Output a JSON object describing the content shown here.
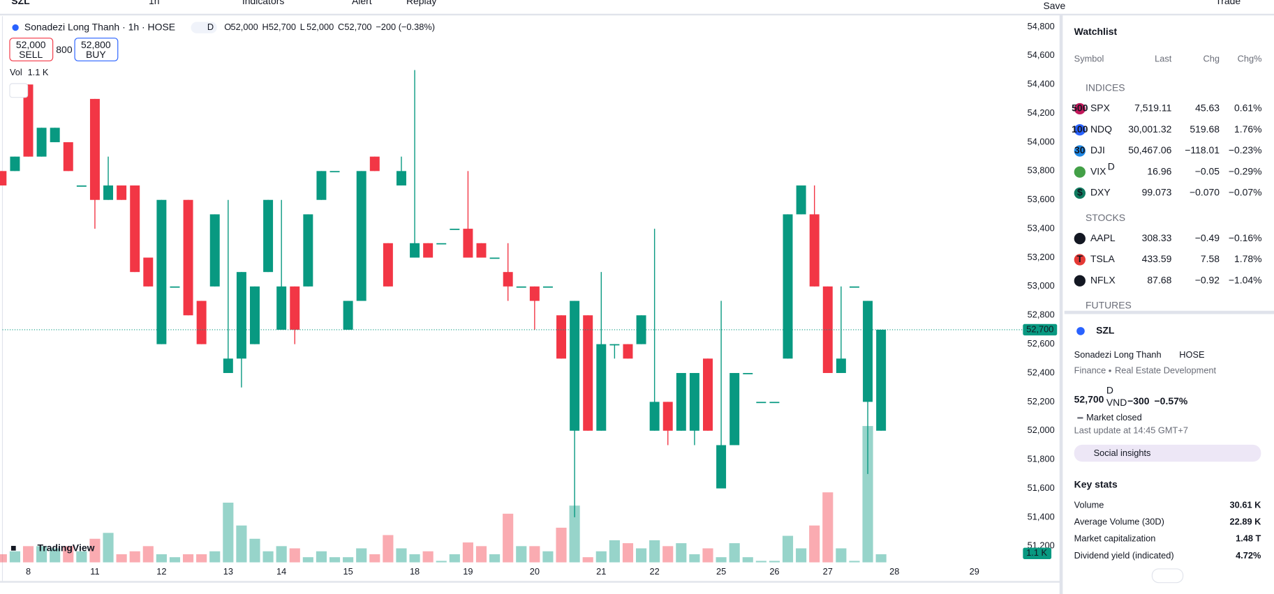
{
  "toolbar": {
    "symbol": "SZL",
    "interval": "1h",
    "indicators": "Indicators",
    "alert": "Alert",
    "replay": "Replay",
    "save": "Save",
    "trade": "Trade"
  },
  "legend": {
    "title": "Sonadezi Long Thanh · 1h · HOSE",
    "badge": "D",
    "ohlc": [
      {
        "label": "O",
        "value": "52,000"
      },
      {
        "label": "H",
        "value": "52,700"
      },
      {
        "label": "L",
        "value": "52,000"
      },
      {
        "label": "C",
        "value": "52,700"
      }
    ],
    "change": "−200 (−0.38%)",
    "sell": "52,000",
    "sell_label": "SELL",
    "spread": "800",
    "buy": "52,800",
    "buy_label": "BUY",
    "vol_label": "Vol",
    "vol": "1.1 K",
    "last_price": "52,700",
    "last_volume": "1.1 K",
    "logo": "TradingView"
  },
  "chart_data": {
    "type": "candlestick",
    "up_color": "#089981",
    "down_color": "#f23645",
    "open": [
      53800,
      53800,
      54400,
      53900,
      54000,
      54000,
      53700,
      54300,
      53600,
      53700,
      53700,
      53200,
      52600,
      53000,
      53600,
      52900,
      53000,
      52400,
      52500,
      52600,
      53100,
      52700,
      53000,
      53000,
      53600,
      53800,
      52700,
      52900,
      53900,
      53300,
      53700,
      53200,
      53300,
      53300,
      53400,
      53400,
      53300,
      53200,
      53100,
      53000,
      53000,
      53000,
      52800,
      52000,
      52800,
      52000,
      52600,
      52600,
      52600,
      52000,
      52200,
      52000,
      52000,
      52500,
      51600,
      51900,
      52400,
      52200,
      52200,
      52500,
      53500,
      53500,
      53000,
      52400,
      53000,
      52200,
      52000
    ],
    "high": [
      53800,
      53900,
      54400,
      54100,
      54100,
      54000,
      53700,
      54300,
      53900,
      53700,
      53700,
      53200,
      53600,
      53000,
      53600,
      52900,
      53500,
      53600,
      53100,
      53000,
      53600,
      53600,
      53000,
      53500,
      53800,
      53800,
      52900,
      53800,
      53900,
      53300,
      53900,
      54500,
      53300,
      53300,
      53400,
      53800,
      53300,
      53200,
      53300,
      53000,
      53000,
      53000,
      52800,
      52900,
      52800,
      53100,
      52600,
      52600,
      52800,
      53400,
      52200,
      52400,
      52400,
      52500,
      52900,
      52400,
      52400,
      52200,
      52200,
      53500,
      53700,
      53700,
      53000,
      53000,
      53000,
      52900,
      52700
    ],
    "low": [
      53700,
      53800,
      53900,
      53900,
      54000,
      53800,
      53700,
      53400,
      53600,
      53600,
      53100,
      53000,
      52600,
      53000,
      52800,
      52600,
      53000,
      52400,
      52300,
      52600,
      53100,
      52700,
      52600,
      53000,
      53600,
      53800,
      52700,
      52900,
      53800,
      53000,
      53700,
      53200,
      53200,
      53300,
      53400,
      53200,
      53200,
      53200,
      52900,
      53000,
      52700,
      53000,
      52500,
      51400,
      52000,
      52000,
      52500,
      52500,
      52600,
      52000,
      51900,
      52000,
      51900,
      52000,
      51600,
      51900,
      52400,
      52200,
      52200,
      52500,
      53500,
      53000,
      52400,
      52400,
      53000,
      51700,
      52000
    ],
    "close": [
      53700,
      53900,
      53900,
      54100,
      54100,
      53800,
      53700,
      53600,
      53700,
      53600,
      53100,
      53000,
      53600,
      53000,
      52800,
      52600,
      53500,
      52500,
      53100,
      53000,
      53600,
      53000,
      52700,
      53500,
      53800,
      53800,
      52900,
      53800,
      53800,
      53000,
      53800,
      53300,
      53200,
      53300,
      53400,
      53200,
      53200,
      53200,
      53000,
      53000,
      52900,
      53000,
      52500,
      52900,
      52000,
      52600,
      52600,
      52500,
      52800,
      52200,
      52000,
      52400,
      52400,
      52000,
      51900,
      52400,
      52400,
      52200,
      52200,
      53500,
      53700,
      53000,
      52400,
      52500,
      53000,
      52900,
      52700
    ],
    "volume": [
      1.1,
      1.5,
      2.2,
      2.2,
      1.9,
      2.2,
      1.5,
      3.2,
      4.0,
      1.1,
      1.5,
      2.2,
      1.1,
      0.7,
      1.1,
      1.1,
      1.5,
      8.1,
      5.0,
      3.2,
      1.5,
      2.2,
      1.9,
      0.7,
      1.5,
      0.7,
      0.7,
      1.9,
      1.1,
      3.7,
      1.9,
      1.1,
      1.5,
      0.2,
      1.1,
      2.7,
      2.2,
      1.1,
      6.6,
      2.2,
      2.2,
      1.5,
      4.7,
      7.7,
      0.7,
      1.5,
      3.0,
      2.6,
      1.9,
      3.0,
      2.2,
      2.6,
      1.1,
      1.9,
      0.7,
      2.6,
      0.7,
      0.2,
      0.2,
      3.6,
      1.9,
      5.0,
      9.5,
      1.9,
      0.2,
      18.5,
      1.1
    ],
    "vlim": [
      0,
      18.5
    ],
    "xlim": [
      0,
      77
    ],
    "ylim": [
      51200,
      54800
    ],
    "xticks": [
      {
        "value": 2,
        "label": "8"
      },
      {
        "value": 7,
        "label": "11"
      },
      {
        "value": 12,
        "label": "12"
      },
      {
        "value": 17,
        "label": "13"
      },
      {
        "value": 21,
        "label": "14"
      },
      {
        "value": 26,
        "label": "15"
      },
      {
        "value": 31,
        "label": "18"
      },
      {
        "value": 35,
        "label": "19"
      },
      {
        "value": 40,
        "label": "20"
      },
      {
        "value": 45,
        "label": "21"
      },
      {
        "value": 49,
        "label": "22"
      },
      {
        "value": 54,
        "label": "25"
      },
      {
        "value": 58,
        "label": "26"
      },
      {
        "value": 62,
        "label": "27"
      },
      {
        "value": 67,
        "label": "28"
      },
      {
        "value": 73,
        "label": "29"
      }
    ],
    "yticks": [
      {
        "value": 51200,
        "label": "51,200"
      },
      {
        "value": 51400,
        "label": "51,400"
      },
      {
        "value": 51600,
        "label": "51,600"
      },
      {
        "value": 51800,
        "label": "51,800"
      },
      {
        "value": 52000,
        "label": "52,000"
      },
      {
        "value": 52200,
        "label": "52,200"
      },
      {
        "value": 52400,
        "label": "52,400"
      },
      {
        "value": 52600,
        "label": "52,600"
      },
      {
        "value": 52800,
        "label": "52,800"
      },
      {
        "value": 53000,
        "label": "53,000"
      },
      {
        "value": 53200,
        "label": "53,200"
      },
      {
        "value": 53400,
        "label": "53,400"
      },
      {
        "value": 53600,
        "label": "53,600"
      },
      {
        "value": 53800,
        "label": "53,800"
      },
      {
        "value": 54000,
        "label": "54,000"
      },
      {
        "value": 54200,
        "label": "54,200"
      },
      {
        "value": 54400,
        "label": "54,400"
      },
      {
        "value": 54600,
        "label": "54,600"
      },
      {
        "value": 54800,
        "label": "54,800"
      }
    ],
    "grid": false
  },
  "watchlist": {
    "title": "Watchlist",
    "columns": [
      "Symbol",
      "Last",
      "Chg",
      "Chg%"
    ],
    "sections": [
      {
        "name": "INDICES",
        "rows": [
          {
            "icon": "500",
            "icon_color": "#c2185b",
            "symbol": "SPX",
            "last": "7,519.11",
            "chg": "45.63",
            "chgp": "0.61%",
            "color": "#089981"
          },
          {
            "icon": "100",
            "icon_color": "#2962ff",
            "symbol": "NDQ",
            "last": "30,001.32",
            "chg": "519.68",
            "chgp": "1.76%",
            "color": "#089981"
          },
          {
            "icon": "30",
            "icon_color": "#1e88e5",
            "symbol": "DJI",
            "last": "50,467.06",
            "chg": "−118.01",
            "chgp": "−0.23%",
            "color": "#f23645"
          },
          {
            "icon_color": "#43a047",
            "symbol": "VIX",
            "flag": "D",
            "last": "16.96",
            "chg": "−0.05",
            "chgp": "−0.29%",
            "color": "#f23645"
          },
          {
            "icon": "$",
            "icon_color": "#0f7a5f",
            "symbol": "DXY",
            "last": "99.073",
            "chg": "−0.070",
            "chgp": "−0.07%",
            "color": "#f23645"
          }
        ]
      },
      {
        "name": "STOCKS",
        "rows": [
          {
            "icon": "",
            "icon_color": "#131722",
            "symbol": "AAPL",
            "last": "308.33",
            "chg": "−0.49",
            "chgp": "−0.16%",
            "color": "#f23645"
          },
          {
            "icon": "T",
            "icon_color": "#e53935",
            "symbol": "TSLA",
            "last": "433.59",
            "chg": "7.58",
            "chgp": "1.78%",
            "color": "#089981"
          },
          {
            "icon": "N",
            "icon_color": "#131722",
            "symbol": "NFLX",
            "last": "87.68",
            "chg": "−0.92",
            "chgp": "−1.04%",
            "color": "#f23645"
          }
        ]
      },
      {
        "name": "FUTURES",
        "rows": []
      }
    ]
  },
  "details": {
    "symbol": "SZL",
    "name": "Sonadezi Long Thanh",
    "exchange": "HOSE",
    "sector": "Finance",
    "industry": "Real Estate Development",
    "price": "52,700",
    "flag": "D",
    "currency": "VND",
    "change": "−300",
    "change_pct": "−0.57%",
    "status": "Market closed",
    "updated": "Last update at 14:45 GMT+7",
    "insights": "Social insights",
    "stats_title": "Key stats",
    "stats": [
      {
        "label": "Volume",
        "value": "30.61 K"
      },
      {
        "label": "Average Volume (30D)",
        "value": "22.89 K"
      },
      {
        "label": "Market capitalization",
        "value": "1.48 T"
      },
      {
        "label": "Dividend yield (indicated)",
        "value": "4.72%"
      }
    ]
  }
}
